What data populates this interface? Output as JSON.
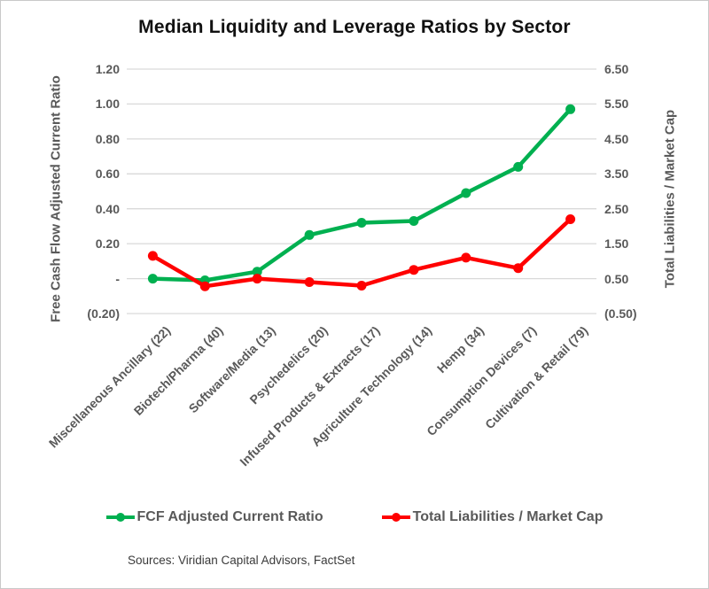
{
  "title": "Median Liquidity and Leverage Ratios by Sector",
  "source": "Sources: Viridian Capital Advisors, FactSet",
  "colors": {
    "green_series": "#00B050",
    "red_series": "#FF0000",
    "gridline": "#D9D9D9",
    "axis_text": "#595959",
    "title_text": "#111111"
  },
  "chart_data": {
    "type": "line",
    "title": "Median Liquidity and Leverage Ratios by Sector",
    "grid": true,
    "legend_position": "bottom",
    "categories": [
      "Miscellaneous Ancillary (22)",
      "Biotech/Pharma (40)",
      "Software/Media (13)",
      "Psychedelics (20)",
      "Infused Products & Extracts (17)",
      "Agriculture Technology (14)",
      "Hemp (34)",
      "Consumption Devices (7)",
      "Cultivation & Retail (79)"
    ],
    "series": [
      {
        "name": "FCF Adjusted Current Ratio",
        "axis": "left",
        "color": "#00B050",
        "values": [
          0.0,
          -0.01,
          0.04,
          0.25,
          0.32,
          0.33,
          0.49,
          0.64,
          0.97
        ]
      },
      {
        "name": "Total Liabilities / Market Cap",
        "axis": "right",
        "color": "#FF0000",
        "values": [
          1.15,
          0.28,
          0.5,
          0.4,
          0.3,
          0.75,
          1.1,
          0.8,
          2.2
        ]
      }
    ],
    "left_axis": {
      "title": "Free Cash Flow Adjusted Current Ratio",
      "range": [
        -0.2,
        1.2
      ],
      "tick_values": [
        1.2,
        1.0,
        0.8,
        0.6,
        0.4,
        0.2,
        0.0,
        -0.2
      ],
      "tick_labels": [
        "1.20",
        "1.00",
        "0.80",
        "0.60",
        "0.40",
        "0.20",
        "-",
        "(0.20)"
      ]
    },
    "right_axis": {
      "title": "Total Liabilities / Market Cap",
      "range": [
        -0.5,
        6.5
      ],
      "tick_values": [
        6.5,
        5.5,
        4.5,
        3.5,
        2.5,
        1.5,
        0.5,
        -0.5
      ],
      "tick_labels": [
        "6.50",
        "5.50",
        "4.50",
        "3.50",
        "2.50",
        "1.50",
        "0.50",
        "(0.50)"
      ]
    }
  },
  "legend": {
    "items": [
      {
        "label": "FCF Adjusted Current Ratio",
        "color": "#00B050"
      },
      {
        "label": "Total Liabilities / Market Cap",
        "color": "#FF0000"
      }
    ]
  }
}
